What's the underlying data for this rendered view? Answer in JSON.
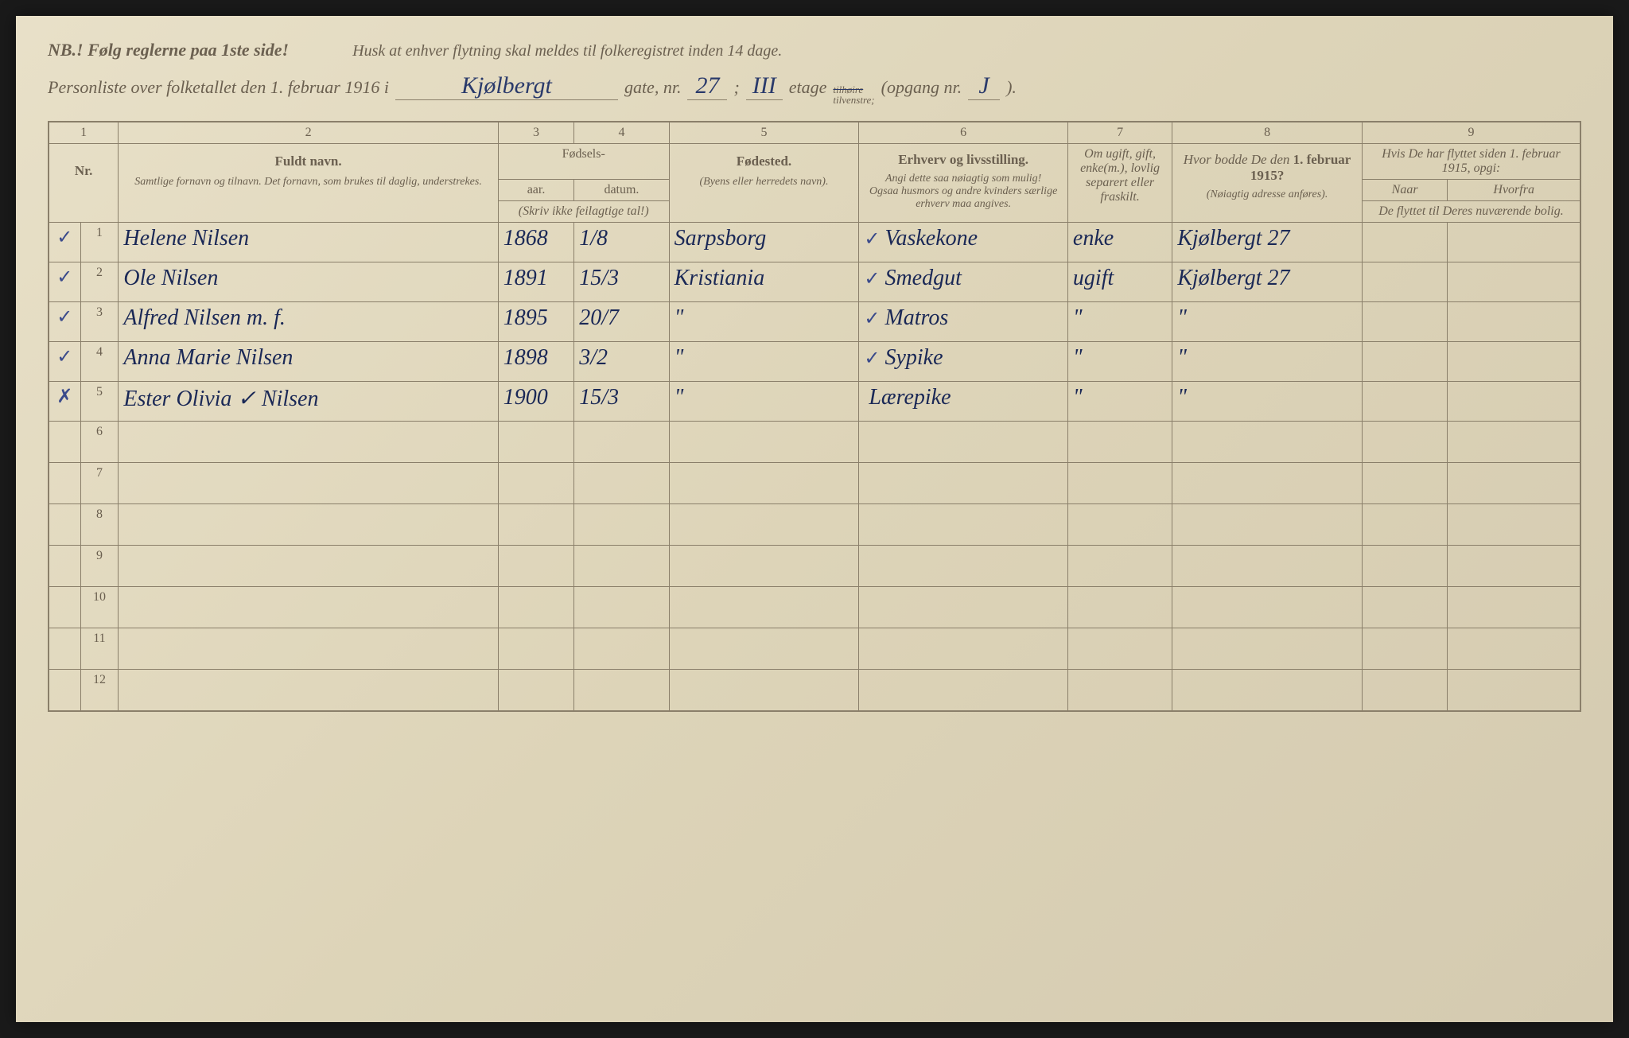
{
  "header": {
    "nb_text": "NB.! Følg reglerne paa 1ste side!",
    "husk_text": "Husk at enhver flytning skal meldes til folkeregistret inden 14 dage.",
    "personliste_prefix": "Personliste over folketallet den 1. februar 1916 i",
    "street_name": "Kjølbergt",
    "gate_label": "gate, nr.",
    "gate_nr": "27",
    "etage_label": "etage",
    "etage_val": "III",
    "tilhøire": "tilhøire",
    "tilvenstre": "tilvenstre;",
    "opgang_label": "(opgang nr.",
    "opgang_val": "J",
    "opgang_close": ")."
  },
  "columns": {
    "nums": [
      "1",
      "2",
      "3",
      "4",
      "5",
      "6",
      "7",
      "8",
      "9"
    ],
    "nr": "Nr.",
    "fuldt_navn": "Fuldt navn.",
    "navn_sub": "Samtlige fornavn og tilnavn. Det fornavn, som brukes til daglig, understrekes.",
    "fodsels": "Fødsels-",
    "aar": "aar.",
    "datum": "datum.",
    "skriv_ikke": "(Skriv ikke feilagtige tal!)",
    "fodested": "Fødested.",
    "fodested_sub": "(Byens eller herredets navn).",
    "erhverv": "Erhverv og livsstilling.",
    "erhverv_sub1": "Angi dette saa nøiagtig som mulig!",
    "erhverv_sub2": "Ogsaa husmors og andre kvinders særlige erhverv maa angives.",
    "status": "Om ugift, gift, enke(m.), lovlig separert eller fraskilt.",
    "hvor_bodde": "Hvor bodde De den 1. februar 1915?",
    "hvor_bodde_sub": "(Nøiagtig adresse anføres).",
    "hvis_flyttet": "Hvis De har flyttet siden 1. februar 1915, opgi:",
    "naar": "Naar",
    "hvorfra": "Hvorfra",
    "flyttet_sub": "De flyttet til Deres nuværende bolig."
  },
  "rows": [
    {
      "mark": "✓",
      "nr": "1",
      "name": "Helene Nilsen",
      "year": "1868",
      "date": "1/8",
      "place": "Sarpsborg",
      "occ_mark": "✓",
      "occupation": "Vaskekone",
      "status": "enke",
      "addr": "Kjølbergt 27"
    },
    {
      "mark": "✓",
      "nr": "2",
      "name": "Ole Nilsen",
      "year": "1891",
      "date": "15/3",
      "place": "Kristiania",
      "occ_mark": "✓",
      "occupation": "Smedgut",
      "status": "ugift",
      "addr": "Kjølbergt 27"
    },
    {
      "mark": "✓",
      "nr": "3",
      "name": "Alfred Nilsen   m. f.",
      "year": "1895",
      "date": "20/7",
      "place": "\"",
      "occ_mark": "✓",
      "occupation": "Matros",
      "status": "\"",
      "addr": "\""
    },
    {
      "mark": "✓",
      "nr": "4",
      "name": "Anna Marie Nilsen",
      "year": "1898",
      "date": "3/2",
      "place": "\"",
      "occ_mark": "✓",
      "occupation": "Sypike",
      "status": "\"",
      "addr": "\""
    },
    {
      "mark": "✗",
      "nr": "5",
      "name": "Ester Olivia ✓ Nilsen",
      "year": "1900",
      "date": "15/3",
      "place": "\"",
      "occ_mark": "",
      "occupation": "Lærepike",
      "status": "\"",
      "addr": "\""
    }
  ],
  "empty_rows": [
    "6",
    "7",
    "8",
    "9",
    "10",
    "11",
    "12"
  ],
  "styling": {
    "background_color": "#e0d7bf",
    "border_color": "#8a7f6a",
    "printed_text_color": "#6b6050",
    "handwritten_color": "#2a3a6b",
    "check_color": "#3a4a8b",
    "handwritten_fontsize": 28,
    "printed_fontsize": 16,
    "header_fontsize": 22
  }
}
